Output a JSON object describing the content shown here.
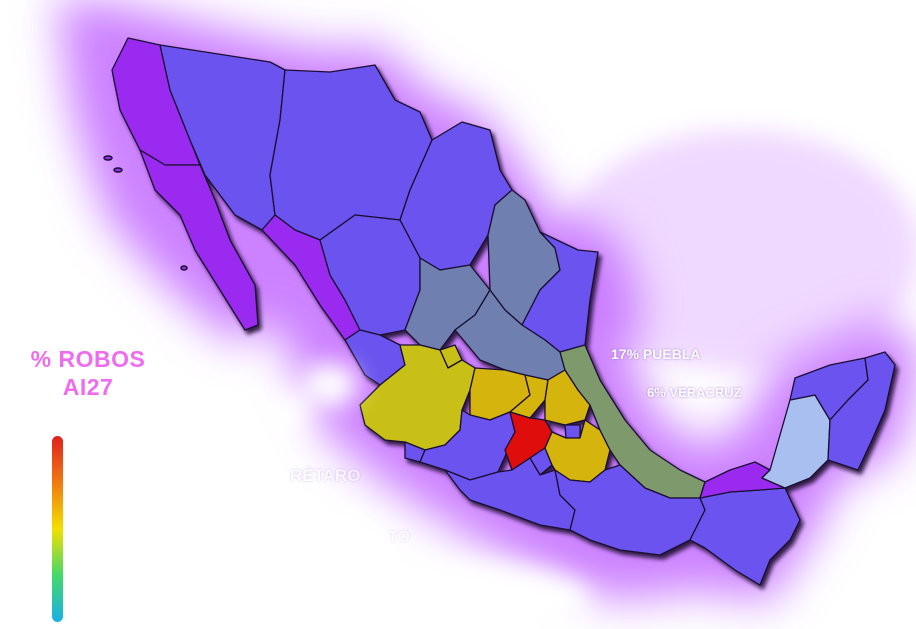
{
  "legend": {
    "title_line1": "% ROBOS",
    "title_line2": "AI27",
    "gradient_colors": [
      "#e02020",
      "#f07a10",
      "#f2e000",
      "#44d86a",
      "#1ab0e8"
    ]
  },
  "labels": [
    {
      "id": "puebla",
      "text": "17% PUEBLA"
    },
    {
      "id": "veracruz",
      "text": "6% VERACRUZ"
    },
    {
      "id": "queretaro",
      "text": "RÉTARO"
    },
    {
      "id": "guanajuato",
      "text": "TO"
    }
  ],
  "colors": {
    "base_state": "#6b52ee",
    "purple_state": "#9b2cf0",
    "glow": "#c46cff",
    "slate_state": "#6e7fb0",
    "green_state": "#7e9a6c",
    "yellow_state": "#c8c018",
    "gold_state": "#d4b40c",
    "red_state": "#e01010",
    "light_state": "#a8bff0",
    "border": "#1a1033"
  }
}
